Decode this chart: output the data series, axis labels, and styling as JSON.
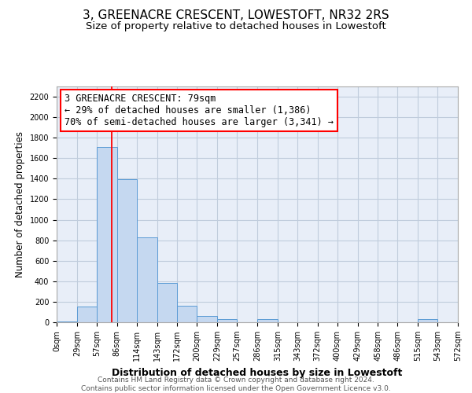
{
  "title": "3, GREENACRE CRESCENT, LOWESTOFT, NR32 2RS",
  "subtitle": "Size of property relative to detached houses in Lowestoft",
  "xlabel": "Distribution of detached houses by size in Lowestoft",
  "ylabel": "Number of detached properties",
  "bin_edges": [
    0,
    29,
    57,
    86,
    114,
    143,
    172,
    200,
    229,
    257,
    286,
    315,
    343,
    372,
    400,
    429,
    458,
    486,
    515,
    543,
    572
  ],
  "bin_labels": [
    "0sqm",
    "29sqm",
    "57sqm",
    "86sqm",
    "114sqm",
    "143sqm",
    "172sqm",
    "200sqm",
    "229sqm",
    "257sqm",
    "286sqm",
    "315sqm",
    "343sqm",
    "372sqm",
    "400sqm",
    "429sqm",
    "458sqm",
    "486sqm",
    "515sqm",
    "543sqm",
    "572sqm"
  ],
  "bar_heights": [
    10,
    155,
    1710,
    1395,
    830,
    385,
    160,
    65,
    30,
    0,
    30,
    0,
    0,
    0,
    0,
    0,
    0,
    0,
    30,
    0
  ],
  "bar_color": "#c5d8f0",
  "bar_edge_color": "#5b9bd5",
  "vline_x": 79,
  "vline_color": "red",
  "annotation_line1": "3 GREENACRE CRESCENT: 79sqm",
  "annotation_line2": "← 29% of detached houses are smaller (1,386)",
  "annotation_line3": "70% of semi-detached houses are larger (3,341) →",
  "ylim": [
    0,
    2300
  ],
  "yticks": [
    0,
    200,
    400,
    600,
    800,
    1000,
    1200,
    1400,
    1600,
    1800,
    2000,
    2200
  ],
  "grid_color": "#c0ccdc",
  "bg_color": "#e8eef8",
  "footer_line1": "Contains HM Land Registry data © Crown copyright and database right 2024.",
  "footer_line2": "Contains public sector information licensed under the Open Government Licence v3.0.",
  "title_fontsize": 11,
  "subtitle_fontsize": 9.5,
  "ylabel_fontsize": 8.5,
  "xlabel_fontsize": 9,
  "annotation_fontsize": 8.5,
  "tick_fontsize": 7,
  "footer_fontsize": 6.5
}
